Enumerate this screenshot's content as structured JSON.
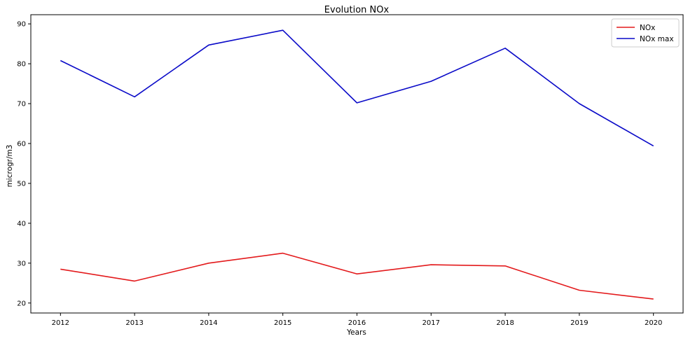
{
  "chart_data": {
    "type": "line",
    "title": "Evolution NOx",
    "xlabel": "Years",
    "ylabel": "microgr/m3",
    "x": [
      2012,
      2013,
      2014,
      2015,
      2016,
      2017,
      2018,
      2019,
      2020
    ],
    "xlim": [
      2011.6,
      2020.4
    ],
    "ylim": [
      17.5,
      92.3
    ],
    "yticks": [
      20,
      30,
      40,
      50,
      60,
      70,
      80,
      90
    ],
    "grid": false,
    "legend_position": "top-right",
    "series": [
      {
        "name": "NOx",
        "color": "#e31a1c",
        "values": [
          28.5,
          25.5,
          30.0,
          32.5,
          27.3,
          29.6,
          29.3,
          23.2,
          21.0
        ]
      },
      {
        "name": "NOx max",
        "color": "#0a0ac8",
        "values": [
          80.8,
          71.7,
          84.7,
          88.4,
          70.2,
          75.6,
          83.9,
          70.0,
          59.4
        ]
      }
    ]
  }
}
